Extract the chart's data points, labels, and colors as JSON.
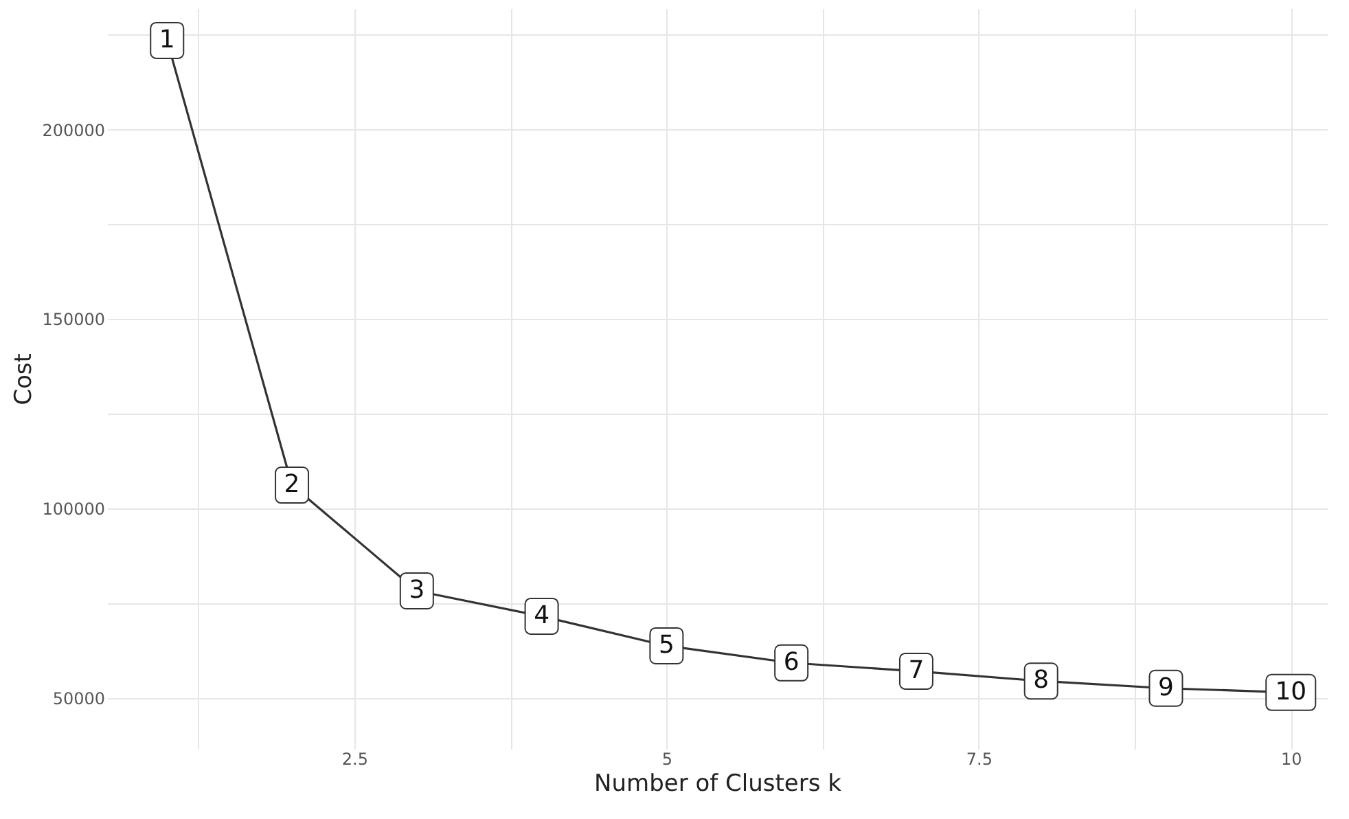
{
  "chart_data": {
    "type": "line",
    "xlabel": "Number of Clusters k",
    "ylabel": "Cost",
    "x": [
      1,
      2,
      3,
      4,
      5,
      6,
      7,
      8,
      9,
      10
    ],
    "series": [
      {
        "color": "#333333",
        "values": [
          223500,
          106200,
          78300,
          71600,
          63800,
          59300,
          57100,
          54500,
          52600,
          51500
        ]
      }
    ],
    "xlim": [
      0.52,
      10.29
    ],
    "ylim": [
      36600,
      232000
    ],
    "xticks": [
      {
        "value": 1.25,
        "label": null
      },
      2.5,
      {
        "value": 3.75,
        "label": null
      },
      5,
      {
        "value": 6.25,
        "label": null
      },
      7.5,
      {
        "value": 8.75,
        "label": null
      },
      10
    ],
    "yticks": [
      50000,
      {
        "value": 75000,
        "label": null
      },
      100000,
      {
        "value": 125000,
        "label": null
      },
      150000,
      {
        "value": 175000,
        "label": null
      },
      200000,
      {
        "value": 225000,
        "label": null
      }
    ],
    "grid": true,
    "marker": "square",
    "line_style": "solid",
    "annotations": [
      {
        "text": "1",
        "x": 1,
        "y": 223500
      },
      {
        "text": "2",
        "x": 2,
        "y": 106200
      },
      {
        "text": "3",
        "x": 3,
        "y": 78300
      },
      {
        "text": "4",
        "x": 4,
        "y": 71600
      },
      {
        "text": "5",
        "x": 5,
        "y": 63800
      },
      {
        "text": "6",
        "x": 6,
        "y": 59300
      },
      {
        "text": "7",
        "x": 7,
        "y": 57100
      },
      {
        "text": "8",
        "x": 8,
        "y": 54500
      },
      {
        "text": "9",
        "x": 9,
        "y": 52600
      },
      {
        "text": "10",
        "x": 10,
        "y": 51500
      }
    ]
  }
}
